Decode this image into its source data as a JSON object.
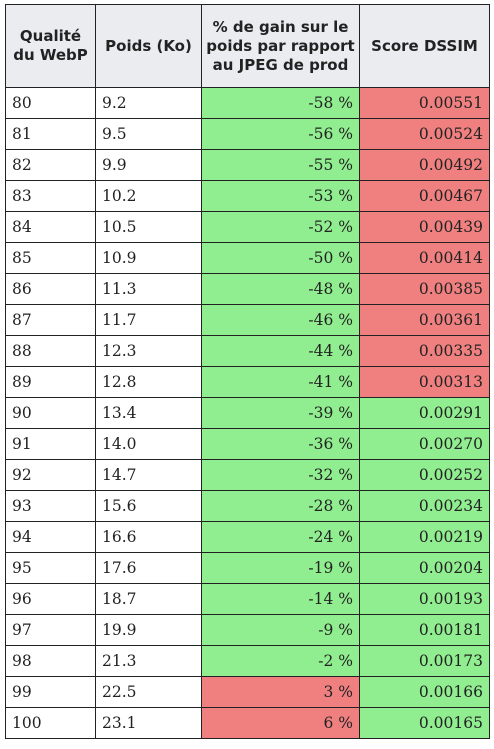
{
  "colors": {
    "good": "#90ee90",
    "bad": "#f08080",
    "header_bg": "#eaecf0",
    "border": "#222222"
  },
  "table": {
    "headers": [
      "Qualité du WebP",
      "Poids (Ko)",
      "% de gain sur le poids par rapport au JPEG de prod",
      "Score DSSIM"
    ],
    "rows": [
      {
        "quality": "80",
        "weight": "9.2",
        "gain": "-58 %",
        "gain_status": "good",
        "dssim": "0.00551",
        "dssim_status": "bad"
      },
      {
        "quality": "81",
        "weight": "9.5",
        "gain": "-56 %",
        "gain_status": "good",
        "dssim": "0.00524",
        "dssim_status": "bad"
      },
      {
        "quality": "82",
        "weight": "9.9",
        "gain": "-55 %",
        "gain_status": "good",
        "dssim": "0.00492",
        "dssim_status": "bad"
      },
      {
        "quality": "83",
        "weight": "10.2",
        "gain": "-53 %",
        "gain_status": "good",
        "dssim": "0.00467",
        "dssim_status": "bad"
      },
      {
        "quality": "84",
        "weight": "10.5",
        "gain": "-52 %",
        "gain_status": "good",
        "dssim": "0.00439",
        "dssim_status": "bad"
      },
      {
        "quality": "85",
        "weight": "10.9",
        "gain": "-50 %",
        "gain_status": "good",
        "dssim": "0.00414",
        "dssim_status": "bad"
      },
      {
        "quality": "86",
        "weight": "11.3",
        "gain": "-48 %",
        "gain_status": "good",
        "dssim": "0.00385",
        "dssim_status": "bad"
      },
      {
        "quality": "87",
        "weight": "11.7",
        "gain": "-46 %",
        "gain_status": "good",
        "dssim": "0.00361",
        "dssim_status": "bad"
      },
      {
        "quality": "88",
        "weight": "12.3",
        "gain": "-44 %",
        "gain_status": "good",
        "dssim": "0.00335",
        "dssim_status": "bad"
      },
      {
        "quality": "89",
        "weight": "12.8",
        "gain": "-41 %",
        "gain_status": "good",
        "dssim": "0.00313",
        "dssim_status": "bad"
      },
      {
        "quality": "90",
        "weight": "13.4",
        "gain": "-39 %",
        "gain_status": "good",
        "dssim": "0.00291",
        "dssim_status": "good"
      },
      {
        "quality": "91",
        "weight": "14.0",
        "gain": "-36 %",
        "gain_status": "good",
        "dssim": "0.00270",
        "dssim_status": "good"
      },
      {
        "quality": "92",
        "weight": "14.7",
        "gain": "-32 %",
        "gain_status": "good",
        "dssim": "0.00252",
        "dssim_status": "good"
      },
      {
        "quality": "93",
        "weight": "15.6",
        "gain": "-28 %",
        "gain_status": "good",
        "dssim": "0.00234",
        "dssim_status": "good"
      },
      {
        "quality": "94",
        "weight": "16.6",
        "gain": "-24 %",
        "gain_status": "good",
        "dssim": "0.00219",
        "dssim_status": "good"
      },
      {
        "quality": "95",
        "weight": "17.6",
        "gain": "-19 %",
        "gain_status": "good",
        "dssim": "0.00204",
        "dssim_status": "good"
      },
      {
        "quality": "96",
        "weight": "18.7",
        "gain": "-14 %",
        "gain_status": "good",
        "dssim": "0.00193",
        "dssim_status": "good"
      },
      {
        "quality": "97",
        "weight": "19.9",
        "gain": "-9 %",
        "gain_status": "good",
        "dssim": "0.00181",
        "dssim_status": "good"
      },
      {
        "quality": "98",
        "weight": "21.3",
        "gain": "-2 %",
        "gain_status": "good",
        "dssim": "0.00173",
        "dssim_status": "good"
      },
      {
        "quality": "99",
        "weight": "22.5",
        "gain": "3 %",
        "gain_status": "bad",
        "dssim": "0.00166",
        "dssim_status": "good"
      },
      {
        "quality": "100",
        "weight": "23.1",
        "gain": "6 %",
        "gain_status": "bad",
        "dssim": "0.00165",
        "dssim_status": "good"
      }
    ]
  }
}
